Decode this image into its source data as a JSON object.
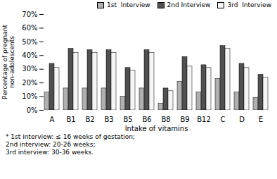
{
  "chart_data": {
    "type": "bar",
    "categories": [
      "A",
      "B1",
      "B2",
      "B3",
      "B5",
      "B6",
      "B8",
      "B9",
      "B12",
      "C",
      "D",
      "E"
    ],
    "series": [
      {
        "name": "1st  Interview",
        "color": "#b0b0b0",
        "values": [
          13,
          16,
          16,
          16,
          10,
          16,
          5,
          21,
          13,
          23,
          13,
          9
        ]
      },
      {
        "name": "2nd Interview",
        "color": "#505050",
        "values": [
          34,
          45,
          44,
          44,
          31,
          44,
          16,
          39,
          33,
          47,
          34,
          26
        ]
      },
      {
        "name": "3rd  Interview",
        "color": "#f5f5f5",
        "values": [
          31,
          42,
          42,
          42,
          29,
          42,
          14,
          32,
          31,
          45,
          31,
          24
        ]
      }
    ],
    "xlabel": "Intake of vitamins",
    "ylabel": "Percentage of pregnant\nnon-adolescents",
    "ylim": [
      0,
      70
    ],
    "yticks": [
      {
        "value": 0,
        "label": "0%"
      },
      {
        "value": 10,
        "label": "10%"
      },
      {
        "value": 20,
        "label": "20%"
      },
      {
        "value": 30,
        "label": "30%"
      },
      {
        "value": 40,
        "label": "40%"
      },
      {
        "value": 50,
        "label": "50%"
      },
      {
        "value": 60,
        "label": "60%"
      },
      {
        "value": 70,
        "label": "70%"
      }
    ],
    "legend": "upper right",
    "grid": false,
    "annotations": [
      "* 1st interview: ≤ 16 weeks of gestation;",
      "2nd interview: 20-26 weeks;",
      "3rd interview: 30-36 weeks."
    ]
  }
}
